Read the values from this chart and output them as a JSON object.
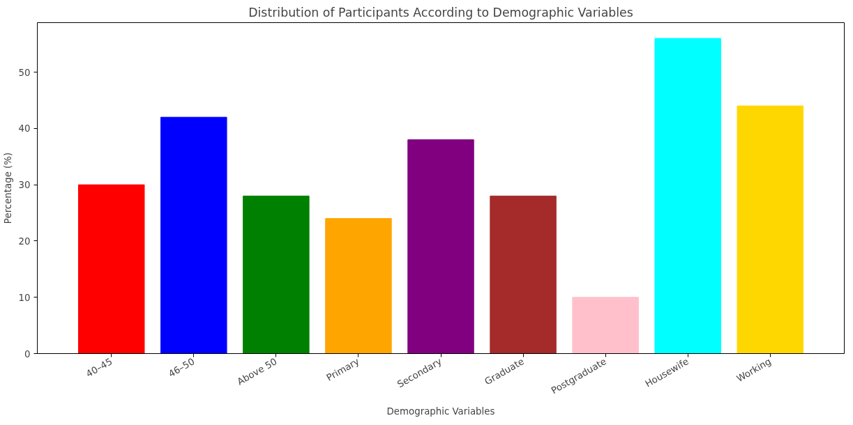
{
  "chart_data": {
    "type": "bar",
    "title": "Distribution of Participants According to Demographic Variables",
    "xlabel": "Demographic Variables",
    "ylabel": "Percentage (%)",
    "categories": [
      "40–45",
      "46–50",
      "Above 50",
      "Primary",
      "Secondary",
      "Graduate",
      "Postgraduate",
      "Housewife",
      "Working"
    ],
    "values": [
      30,
      42,
      28,
      24,
      38,
      28,
      10,
      56,
      44
    ],
    "colors": [
      "#ff0000",
      "#0000ff",
      "#008000",
      "#ffa500",
      "#800080",
      "#a52a2a",
      "#ffc0cb",
      "#00ffff",
      "#ffd700"
    ],
    "ylim": [
      0,
      58.8
    ],
    "yticks": [
      0,
      10,
      20,
      30,
      40,
      50
    ]
  }
}
